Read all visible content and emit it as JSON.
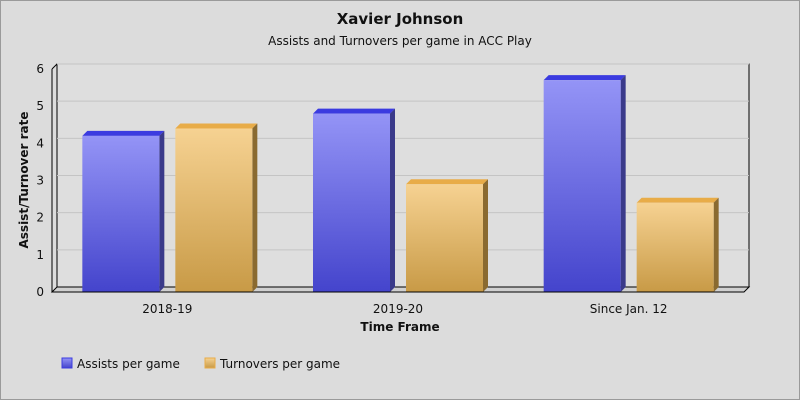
{
  "chart_data": {
    "type": "bar",
    "title": "Xavier Johnson",
    "subtitle": "Assists and Turnovers per game in ACC Play",
    "xlabel": "Time Frame",
    "ylabel": "Assist/Turnover rate",
    "categories": [
      "2018-19",
      "2019-20",
      "Since Jan. 12"
    ],
    "series": [
      {
        "name": "Assists per game",
        "values": [
          4.2,
          4.8,
          5.7
        ],
        "color": "#4848d8"
      },
      {
        "name": "Turnovers per game",
        "values": [
          4.4,
          2.9,
          2.4
        ],
        "color": "#e2b05c"
      }
    ],
    "ylim": [
      0,
      6
    ],
    "yticks": [
      "0",
      "1",
      "2",
      "3",
      "4",
      "5",
      "6"
    ],
    "grid": true,
    "legend": "bottom-left",
    "style": "3d"
  }
}
